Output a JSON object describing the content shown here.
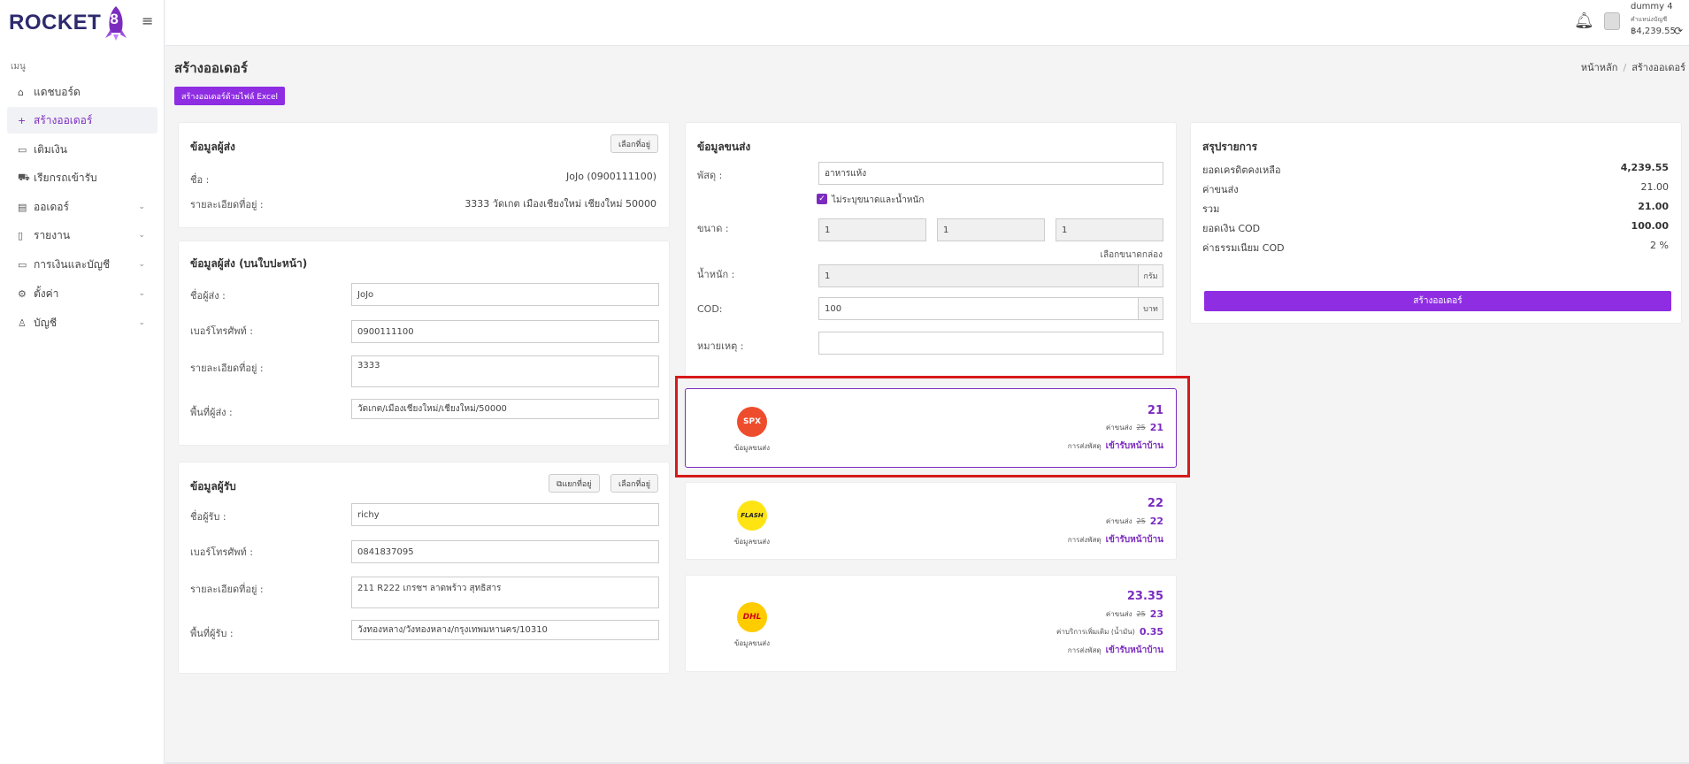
{
  "app": {
    "logo_text": "ROCKET",
    "logo_number": "8"
  },
  "sidebar": {
    "caption": "เมนู",
    "items": [
      {
        "label": "แดชบอร์ด",
        "icon": "home-icon",
        "glyph": "⌂"
      },
      {
        "label": "สร้างออเดอร์",
        "icon": "plus-icon",
        "glyph": "+"
      },
      {
        "label": "เติมเงิน",
        "icon": "wallet-icon",
        "glyph": "▭"
      },
      {
        "label": "เรียกรถเข้ารับ",
        "icon": "truck-icon",
        "glyph": "⛟"
      },
      {
        "label": "ออเดอร์",
        "icon": "order-icon",
        "glyph": "▤"
      },
      {
        "label": "รายงาน",
        "icon": "clipboard-icon",
        "glyph": "▯"
      },
      {
        "label": "การเงินและบัญชี",
        "icon": "money-icon",
        "glyph": "▭"
      },
      {
        "label": "ตั้งค่า",
        "icon": "gear-icon",
        "glyph": "⚙"
      },
      {
        "label": "บัญชี",
        "icon": "user-icon",
        "glyph": "♙"
      }
    ]
  },
  "header": {
    "user_name": "dummy 4",
    "user_sub": "คำแหน่งบัญชี",
    "credit": "฿4,239.55"
  },
  "page": {
    "title": "สร้างออเดอร์",
    "breadcrumb": [
      "หน้าหลัก",
      "สร้างออเดอร์"
    ],
    "excel_button": "สร้างออเดอร์ด้วยไฟล์ Excel"
  },
  "sender": {
    "title": "ข้อมูลผู้ส่ง",
    "choose_address": "เลือกที่อยู่",
    "name_label": "ชื่อ :",
    "name_value": "JoJo (0900111100)",
    "address_label": "รายละเอียดที่อยู่ :",
    "address_value": "3333 วัดเกต เมืองเชียงใหม่ เชียงใหม่ 50000"
  },
  "label_sender": {
    "title": "ข้อมูลผู้ส่ง (บนใบปะหน้า)",
    "name_label": "ชื่อผู้ส่ง :",
    "name_value": "JoJo",
    "phone_label": "เบอร์โทรศัพท์ :",
    "phone_value": "0900111100",
    "address_label": "รายละเอียดที่อยู่ :",
    "address_value": "3333",
    "area_label": "พื้นที่ผู้ส่ง :",
    "area_value": "วัดเกต/เมืองเชียงใหม่/เชียงใหม่/50000"
  },
  "receiver": {
    "title": "ข้อมูลผู้รับ",
    "separate_address": "แยกที่อยู่",
    "choose_address": "เลือกที่อยู่",
    "name_label": "ชื่อผู้รับ :",
    "name_value": "richy",
    "phone_label": "เบอร์โทรศัพท์ :",
    "phone_value": "0841837095",
    "address_label": "รายละเอียดที่อยู่ :",
    "address_value": "211 R222 เกรซฯ ลาดพร้าว สุทธิสาร",
    "area_label": "พื้นที่ผู้รับ :",
    "area_value": "วังทองหลาง/วังทองหลาง/กรุงเทพมหานคร/10310"
  },
  "shipping": {
    "title": "ข้อมูลขนส่ง",
    "parcel_label": "พัสดุ :",
    "parcel_value": "อาหารแห้ง",
    "no_size_label": "ไม่ระบุขนาดและน้ำหนัก",
    "size_label": "ขนาด :",
    "size_values": [
      "1",
      "1",
      "1"
    ],
    "choose_box": "เลือกขนาดกล่อง",
    "weight_label": "น้ำหนัก :",
    "weight_value": "1",
    "weight_unit": "กรัม",
    "cod_label": "COD:",
    "cod_value": "100",
    "cod_unit": "บาท",
    "note_label": "หมายเหตุ :",
    "note_value": ""
  },
  "couriers": [
    {
      "code": "SPX",
      "logo_bg": "#ee4d2d",
      "logo_fg": "#ffffff",
      "label": "ข้อมูลขนส่ง",
      "total": "21",
      "fee_label": "ค่าขนส่ง",
      "fee_old": "25",
      "fee_new": "21",
      "method_label": "การส่งพัสดุ",
      "method_value": "เข้ารับหน้าบ้าน"
    },
    {
      "code": "FLASH",
      "logo_bg": "#ffe414",
      "logo_fg": "#222222",
      "label": "ข้อมูลขนส่ง",
      "total": "22",
      "fee_label": "ค่าขนส่ง",
      "fee_old": "25",
      "fee_new": "22",
      "method_label": "การส่งพัสดุ",
      "method_value": "เข้ารับหน้าบ้าน"
    },
    {
      "code": "DHL",
      "logo_bg": "#ffcc00",
      "logo_fg": "#d40511",
      "label": "ข้อมูลขนส่ง",
      "total": "23.35",
      "fee_label": "ค่าขนส่ง",
      "fee_old": "25",
      "fee_new": "23",
      "extra_label": "ค่าบริการเพิ่มเติม (น้ำมัน)",
      "extra_value": "0.35",
      "method_label": "การส่งพัสดุ",
      "method_value": "เข้ารับหน้าบ้าน"
    }
  ],
  "summary": {
    "title": "สรุปรายการ",
    "rows": [
      {
        "label": "ยอดเครดิตคงเหลือ",
        "value": "4,239.55",
        "bold": true
      },
      {
        "label": "ค่าขนส่ง",
        "value": "21.00",
        "bold": false
      },
      {
        "label": "รวม",
        "value": "21.00",
        "bold": true
      },
      {
        "label": "ยอดเงิน COD",
        "value": "100.00",
        "bold": true
      },
      {
        "label": "ค่าธรรมเนียม COD",
        "value": "2 %",
        "bold": false
      }
    ],
    "create_button": "สร้างออเดอร์"
  },
  "colors": {
    "accent": "#8e2de2",
    "selected_border": "#7b2cbf",
    "highlight": "#d61a1a"
  }
}
